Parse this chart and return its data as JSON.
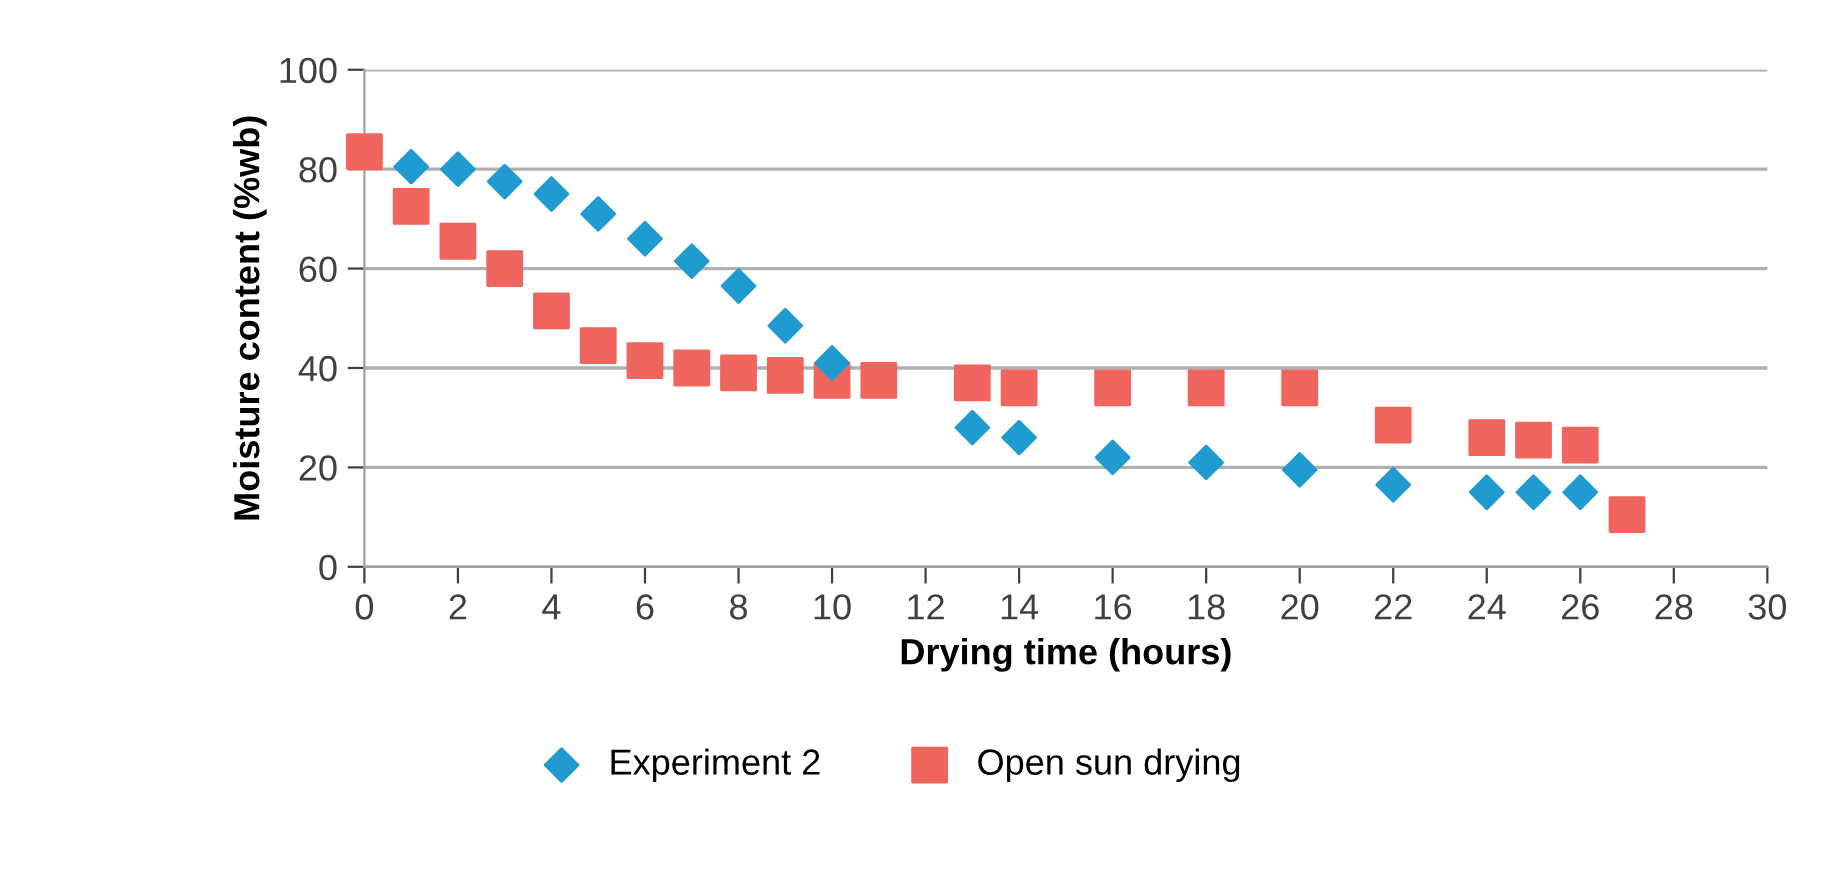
{
  "chart_data": {
    "type": "scatter",
    "xlabel": "Drying time (hours)",
    "ylabel": "Moisture content (%wb)",
    "xlim": [
      0,
      30
    ],
    "xticks": [
      0,
      2,
      4,
      6,
      8,
      10,
      12,
      14,
      16,
      18,
      20,
      22,
      24,
      26,
      28,
      30
    ],
    "ylim": [
      0,
      100
    ],
    "yticks": [
      0,
      20,
      40,
      60,
      80,
      100
    ],
    "grid": "y",
    "legend": "bottom",
    "series": [
      {
        "name": "Experiment 2",
        "color": "#1f9bcf",
        "marker": "diamond",
        "x": [
          1,
          2,
          3,
          4,
          5,
          6,
          7,
          8,
          9,
          10,
          13,
          14,
          16,
          18,
          20,
          22,
          24,
          25,
          26
        ],
        "values": [
          80.5,
          80,
          77.5,
          75,
          71,
          66,
          61.5,
          56.5,
          48.5,
          41,
          28,
          26,
          22,
          21,
          19.5,
          16.5,
          15,
          15,
          15
        ]
      },
      {
        "name": "Open sun drying",
        "color": "#f0655d",
        "marker": "square",
        "x": [
          0,
          1,
          2,
          3,
          4,
          5,
          6,
          7,
          8,
          9,
          10,
          11,
          13,
          14,
          16,
          18,
          20,
          22,
          24,
          25,
          26,
          27
        ],
        "values": [
          83.5,
          72.5,
          65.5,
          60,
          51.5,
          44.5,
          41.5,
          40,
          39,
          38.5,
          37.5,
          37.5,
          37,
          36,
          36,
          36,
          36,
          28.5,
          26,
          25.5,
          24.5,
          10.5
        ]
      }
    ]
  }
}
